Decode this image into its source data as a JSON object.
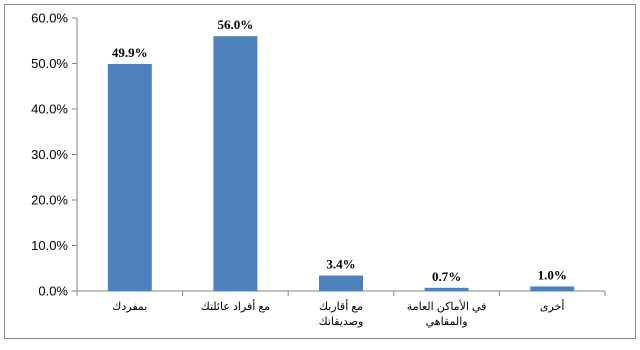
{
  "chart_data": {
    "type": "bar",
    "categories": [
      [
        "بمفردك"
      ],
      [
        "مع أفراد عائلتك"
      ],
      [
        "مع أقاربك",
        "وصديقاتك"
      ],
      [
        "في الأماكن العامة",
        "والمقاهي"
      ],
      [
        "أخرى"
      ]
    ],
    "values": [
      49.9,
      56.0,
      3.4,
      0.7,
      1.0
    ],
    "value_labels": [
      "49.9%",
      "56.0%",
      "3.4%",
      "0.7%",
      "1.0%"
    ],
    "y_ticks": [
      "0.0%",
      "10.0%",
      "20.0%",
      "30.0%",
      "40.0%",
      "50.0%",
      "60.0%"
    ],
    "ylim": [
      0,
      60
    ],
    "y_unit": "percent",
    "title": "",
    "xlabel": "",
    "ylabel": "",
    "grid": false,
    "legend": "none",
    "colors": {
      "bar": "#4F81BD",
      "axis": "#868686",
      "frame": "#8E8E8E"
    }
  }
}
